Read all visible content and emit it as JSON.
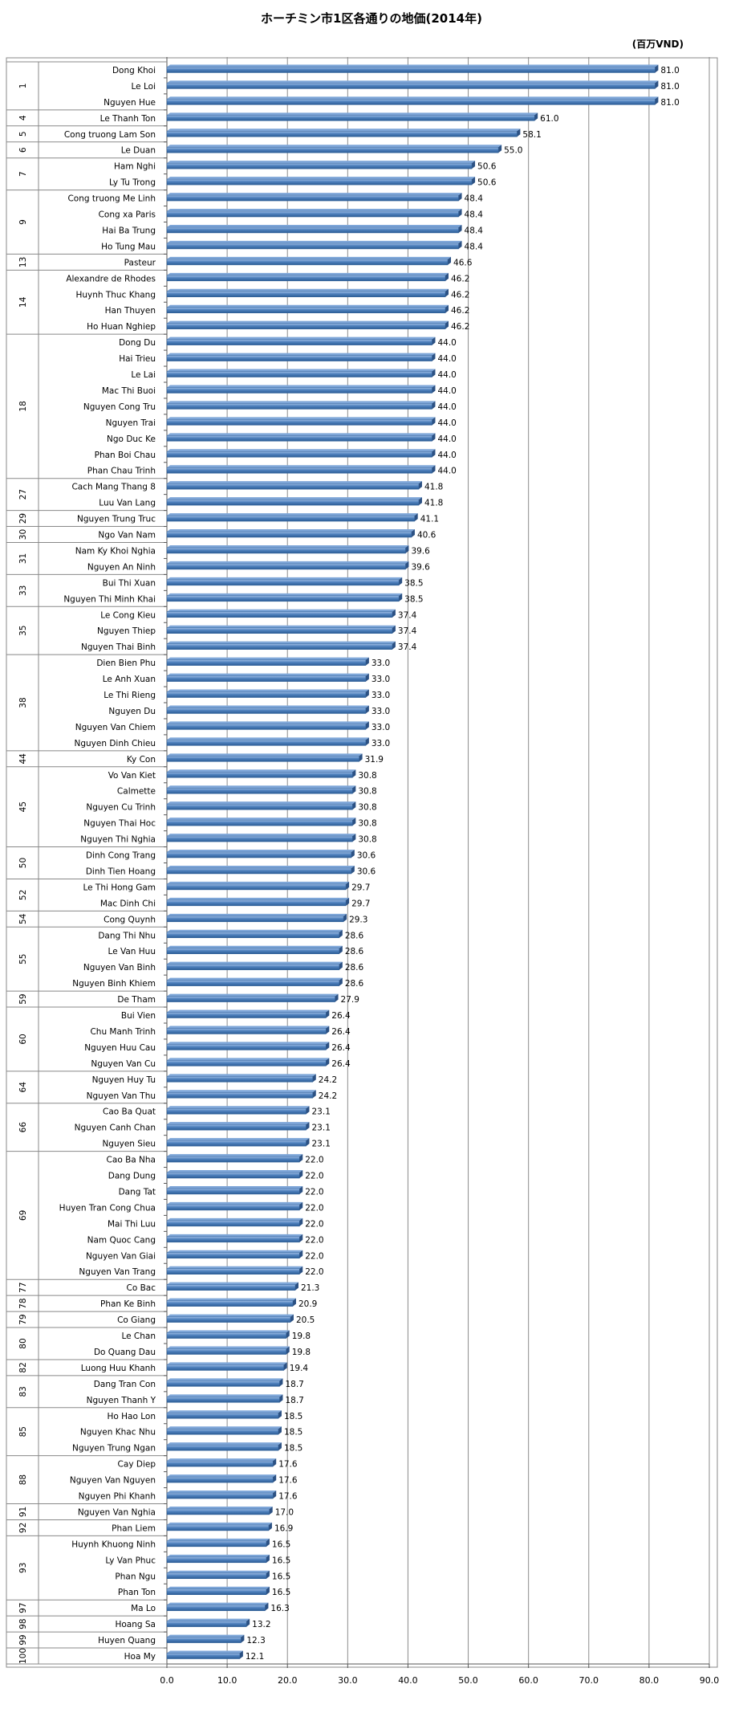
{
  "chart_data": {
    "type": "bar",
    "orientation": "horizontal",
    "title": "ホーチミン市1区各通りの地価(2014年)",
    "unit": "(百万VND)",
    "xlim": [
      0,
      90
    ],
    "xticks": [
      "0.0",
      "10.0",
      "20.0",
      "30.0",
      "40.0",
      "50.0",
      "60.0",
      "70.0",
      "80.0",
      "90.0"
    ],
    "grid": "vertical",
    "bar_color": "#4f81bd",
    "groups": [
      {
        "rank": "1",
        "items": [
          {
            "name": "Dong Khoi",
            "value": 81.0
          },
          {
            "name": "Le Loi",
            "value": 81.0
          },
          {
            "name": "Nguyen Hue",
            "value": 81.0
          }
        ]
      },
      {
        "rank": "4",
        "items": [
          {
            "name": "Le Thanh Ton",
            "value": 61.0
          }
        ]
      },
      {
        "rank": "5",
        "items": [
          {
            "name": "Cong truong Lam Son",
            "value": 58.1
          }
        ]
      },
      {
        "rank": "6",
        "items": [
          {
            "name": "Le Duan",
            "value": 55.0
          }
        ]
      },
      {
        "rank": "7",
        "items": [
          {
            "name": "Ham Nghi",
            "value": 50.6
          },
          {
            "name": "Ly Tu Trong",
            "value": 50.6
          }
        ]
      },
      {
        "rank": "9",
        "items": [
          {
            "name": "Cong truong Me Linh",
            "value": 48.4
          },
          {
            "name": "Cong xa Paris",
            "value": 48.4
          },
          {
            "name": "Hai Ba Trung",
            "value": 48.4
          },
          {
            "name": "Ho Tung Mau",
            "value": 48.4
          }
        ]
      },
      {
        "rank": "13",
        "items": [
          {
            "name": "Pasteur",
            "value": 46.6
          }
        ]
      },
      {
        "rank": "14",
        "items": [
          {
            "name": "Alexandre de Rhodes",
            "value": 46.2
          },
          {
            "name": "Huynh Thuc Khang",
            "value": 46.2
          },
          {
            "name": "Han Thuyen",
            "value": 46.2
          },
          {
            "name": "Ho Huan Nghiep",
            "value": 46.2
          }
        ]
      },
      {
        "rank": "18",
        "items": [
          {
            "name": "Dong Du",
            "value": 44.0
          },
          {
            "name": "Hai Trieu",
            "value": 44.0
          },
          {
            "name": "Le Lai",
            "value": 44.0
          },
          {
            "name": "Mac Thi Buoi",
            "value": 44.0
          },
          {
            "name": "Nguyen Cong Tru",
            "value": 44.0
          },
          {
            "name": "Nguyen Trai",
            "value": 44.0
          },
          {
            "name": "Ngo Duc Ke",
            "value": 44.0
          },
          {
            "name": "Phan Boi Chau",
            "value": 44.0
          },
          {
            "name": "Phan Chau Trinh",
            "value": 44.0
          }
        ]
      },
      {
        "rank": "27",
        "items": [
          {
            "name": "Cach Mang Thang 8",
            "value": 41.8
          },
          {
            "name": "Luu Van Lang",
            "value": 41.8
          }
        ]
      },
      {
        "rank": "29",
        "items": [
          {
            "name": "Nguyen Trung Truc",
            "value": 41.1
          }
        ]
      },
      {
        "rank": "30",
        "items": [
          {
            "name": "Ngo Van Nam",
            "value": 40.6
          }
        ]
      },
      {
        "rank": "31",
        "items": [
          {
            "name": "Nam Ky Khoi Nghia",
            "value": 39.6
          },
          {
            "name": "Nguyen An Ninh",
            "value": 39.6
          }
        ]
      },
      {
        "rank": "33",
        "items": [
          {
            "name": "Bui Thi Xuan",
            "value": 38.5
          },
          {
            "name": "Nguyen Thi Minh Khai",
            "value": 38.5
          }
        ]
      },
      {
        "rank": "35",
        "items": [
          {
            "name": "Le Cong Kieu",
            "value": 37.4
          },
          {
            "name": "Nguyen Thiep",
            "value": 37.4
          },
          {
            "name": "Nguyen Thai Binh",
            "value": 37.4
          }
        ]
      },
      {
        "rank": "38",
        "items": [
          {
            "name": "Dien Bien Phu",
            "value": 33.0
          },
          {
            "name": "Le Anh Xuan",
            "value": 33.0
          },
          {
            "name": "Le Thi Rieng",
            "value": 33.0
          },
          {
            "name": "Nguyen Du",
            "value": 33.0
          },
          {
            "name": "Nguyen Van Chiem",
            "value": 33.0
          },
          {
            "name": "Nguyen Dinh Chieu",
            "value": 33.0
          }
        ]
      },
      {
        "rank": "44",
        "items": [
          {
            "name": "Ky Con",
            "value": 31.9
          }
        ]
      },
      {
        "rank": "45",
        "items": [
          {
            "name": "Vo Van Kiet",
            "value": 30.8
          },
          {
            "name": "Calmette",
            "value": 30.8
          },
          {
            "name": "Nguyen Cu Trinh",
            "value": 30.8
          },
          {
            "name": "Nguyen Thai Hoc",
            "value": 30.8
          },
          {
            "name": "Nguyen Thi Nghia",
            "value": 30.8
          }
        ]
      },
      {
        "rank": "50",
        "items": [
          {
            "name": "Dinh Cong Trang",
            "value": 30.6
          },
          {
            "name": "Dinh Tien Hoang",
            "value": 30.6
          }
        ]
      },
      {
        "rank": "52",
        "items": [
          {
            "name": "Le Thi Hong Gam",
            "value": 29.7
          },
          {
            "name": "Mac Dinh Chi",
            "value": 29.7
          }
        ]
      },
      {
        "rank": "54",
        "items": [
          {
            "name": "Cong Quynh",
            "value": 29.3
          }
        ]
      },
      {
        "rank": "55",
        "items": [
          {
            "name": "Dang Thi Nhu",
            "value": 28.6
          },
          {
            "name": "Le Van Huu",
            "value": 28.6
          },
          {
            "name": "Nguyen Van Binh",
            "value": 28.6
          },
          {
            "name": "Nguyen Binh Khiem",
            "value": 28.6
          }
        ]
      },
      {
        "rank": "59",
        "items": [
          {
            "name": "De Tham",
            "value": 27.9
          }
        ]
      },
      {
        "rank": "60",
        "items": [
          {
            "name": "Bui Vien",
            "value": 26.4
          },
          {
            "name": "Chu Manh Trinh",
            "value": 26.4
          },
          {
            "name": "Nguyen Huu Cau",
            "value": 26.4
          },
          {
            "name": "Nguyen Van Cu",
            "value": 26.4
          }
        ]
      },
      {
        "rank": "64",
        "items": [
          {
            "name": "Nguyen Huy Tu",
            "value": 24.2
          },
          {
            "name": "Nguyen Van Thu",
            "value": 24.2
          }
        ]
      },
      {
        "rank": "66",
        "items": [
          {
            "name": "Cao Ba Quat",
            "value": 23.1
          },
          {
            "name": "Nguyen Canh Chan",
            "value": 23.1
          },
          {
            "name": "Nguyen Sieu",
            "value": 23.1
          }
        ]
      },
      {
        "rank": "69",
        "items": [
          {
            "name": "Cao Ba Nha",
            "value": 22.0
          },
          {
            "name": "Dang Dung",
            "value": 22.0
          },
          {
            "name": "Dang Tat",
            "value": 22.0
          },
          {
            "name": "Huyen Tran Cong Chua",
            "value": 22.0
          },
          {
            "name": "Mai Thi Luu",
            "value": 22.0
          },
          {
            "name": "Nam Quoc Cang",
            "value": 22.0
          },
          {
            "name": "Nguyen Van Giai",
            "value": 22.0
          },
          {
            "name": "Nguyen Van Trang",
            "value": 22.0
          }
        ]
      },
      {
        "rank": "77",
        "items": [
          {
            "name": "Co Bac",
            "value": 21.3
          }
        ]
      },
      {
        "rank": "78",
        "items": [
          {
            "name": "Phan Ke Binh",
            "value": 20.9
          }
        ]
      },
      {
        "rank": "79",
        "items": [
          {
            "name": "Co Giang",
            "value": 20.5
          }
        ]
      },
      {
        "rank": "80",
        "items": [
          {
            "name": "Le Chan",
            "value": 19.8
          },
          {
            "name": "Do Quang Dau",
            "value": 19.8
          }
        ]
      },
      {
        "rank": "82",
        "items": [
          {
            "name": "Luong Huu Khanh",
            "value": 19.4
          }
        ]
      },
      {
        "rank": "83",
        "items": [
          {
            "name": "Dang Tran Con",
            "value": 18.7
          },
          {
            "name": "Nguyen Thanh Y",
            "value": 18.7
          }
        ]
      },
      {
        "rank": "85",
        "items": [
          {
            "name": "Ho Hao Lon",
            "value": 18.5
          },
          {
            "name": "Nguyen Khac Nhu",
            "value": 18.5
          },
          {
            "name": "Nguyen Trung Ngan",
            "value": 18.5
          }
        ]
      },
      {
        "rank": "88",
        "items": [
          {
            "name": "Cay Diep",
            "value": 17.6
          },
          {
            "name": "Nguyen Van Nguyen",
            "value": 17.6
          },
          {
            "name": "Nguyen Phi Khanh",
            "value": 17.6
          }
        ]
      },
      {
        "rank": "91",
        "items": [
          {
            "name": "Nguyen Van Nghia",
            "value": 17.0
          }
        ]
      },
      {
        "rank": "92",
        "items": [
          {
            "name": "Phan Liem",
            "value": 16.9
          }
        ]
      },
      {
        "rank": "93",
        "items": [
          {
            "name": "Huynh Khuong Ninh",
            "value": 16.5
          },
          {
            "name": "Ly Van Phuc",
            "value": 16.5
          },
          {
            "name": "Phan Ngu",
            "value": 16.5
          },
          {
            "name": "Phan Ton",
            "value": 16.5
          }
        ]
      },
      {
        "rank": "97",
        "items": [
          {
            "name": "Ma Lo",
            "value": 16.3
          }
        ]
      },
      {
        "rank": "98",
        "items": [
          {
            "name": "Hoang Sa",
            "value": 13.2
          }
        ]
      },
      {
        "rank": "99",
        "items": [
          {
            "name": "Huyen Quang",
            "value": 12.3
          }
        ]
      },
      {
        "rank": "100",
        "items": [
          {
            "name": "Hoa My",
            "value": 12.1
          }
        ]
      }
    ]
  }
}
